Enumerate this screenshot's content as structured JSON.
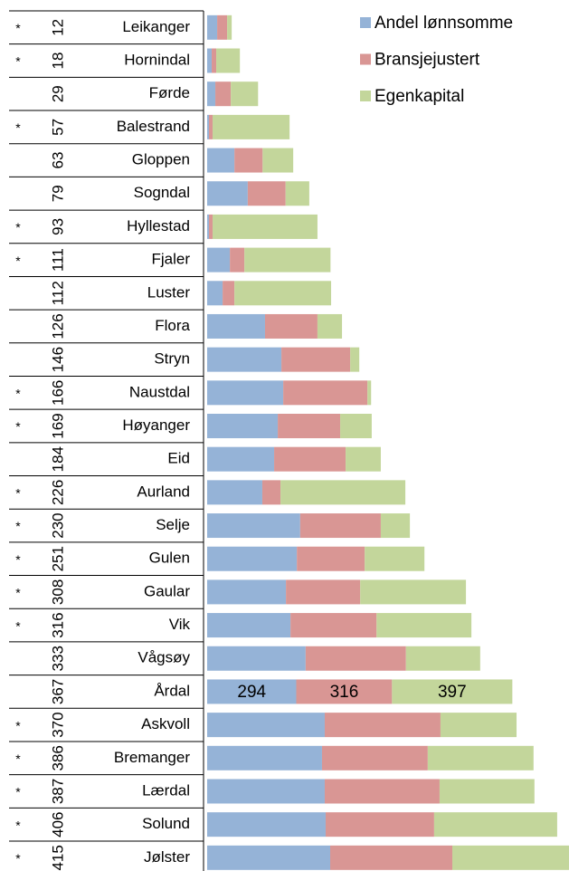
{
  "chart_data": {
    "type": "stacked-bar",
    "categories": [
      "Leikanger",
      "Hornindal",
      "Førde",
      "Balestrand",
      "Gloppen",
      "Sogndal",
      "Hyllestad",
      "Fjaler",
      "Luster",
      "Flora",
      "Stryn",
      "Naustdal",
      "Høyanger",
      "Eid",
      "Aurland",
      "Selje",
      "Gulen",
      "Gaular",
      "Vik",
      "Vågsøy",
      "Årdal",
      "Askvoll",
      "Bremanger",
      "Lærdal",
      "Solund",
      "Jølster"
    ],
    "ranks": [
      12,
      18,
      29,
      57,
      63,
      79,
      93,
      111,
      112,
      126,
      146,
      166,
      169,
      184,
      226,
      230,
      251,
      308,
      316,
      333,
      367,
      370,
      386,
      387,
      406,
      415
    ],
    "flags": [
      "*",
      "*",
      null,
      "*",
      null,
      null,
      "*",
      "*",
      null,
      null,
      null,
      "*",
      "*",
      null,
      "*",
      "*",
      "*",
      "*",
      "*",
      null,
      null,
      "*",
      "*",
      "*",
      "*",
      "*"
    ],
    "series": [
      {
        "name": "Andel lønnsomme",
        "color": "#95b3d7",
        "values": [
          33,
          15,
          27,
          6,
          90,
          134,
          6,
          75,
          51,
          191,
          245,
          251,
          233,
          221,
          182,
          307,
          296,
          260,
          275,
          325,
          294,
          388,
          379,
          388,
          391,
          406
        ],
        "value_labels": [
          null,
          null,
          null,
          null,
          null,
          null,
          null,
          null,
          null,
          null,
          null,
          null,
          null,
          null,
          null,
          null,
          null,
          null,
          null,
          null,
          "294",
          null,
          null,
          null,
          null,
          null
        ]
      },
      {
        "name": "Bransjejustert",
        "color": "#d99694",
        "values": [
          33,
          15,
          51,
          12,
          93,
          125,
          12,
          48,
          39,
          173,
          227,
          278,
          206,
          236,
          60,
          266,
          224,
          245,
          284,
          331,
          316,
          382,
          349,
          379,
          358,
          403
        ],
        "value_labels": [
          null,
          null,
          null,
          null,
          null,
          null,
          null,
          null,
          null,
          null,
          null,
          null,
          null,
          null,
          null,
          null,
          null,
          null,
          null,
          null,
          "316",
          null,
          null,
          null,
          null,
          null
        ]
      },
      {
        "name": "Egenkapital",
        "color": "#c3d69b",
        "values": [
          15,
          78,
          90,
          254,
          101,
          78,
          346,
          284,
          319,
          81,
          30,
          12,
          104,
          116,
          412,
          96,
          197,
          349,
          313,
          245,
          397,
          251,
          349,
          313,
          406,
          385
        ],
        "value_labels": [
          null,
          null,
          null,
          null,
          null,
          null,
          null,
          null,
          null,
          null,
          null,
          null,
          null,
          null,
          null,
          null,
          null,
          null,
          null,
          null,
          "397",
          null,
          null,
          null,
          null,
          null
        ]
      }
    ],
    "xlim": [
      0,
      1200
    ],
    "legend": "top-right"
  }
}
